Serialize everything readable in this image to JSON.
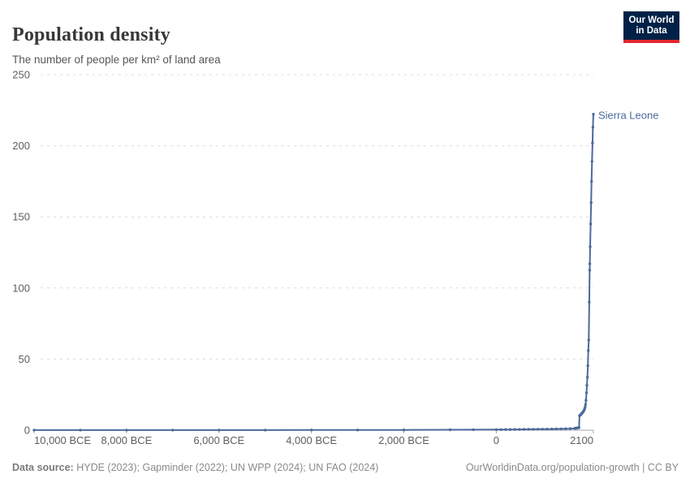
{
  "header": {
    "title": "Population density",
    "subtitle": "The number of people per km² of land area"
  },
  "logo": {
    "line1": "Our World",
    "line2": "in Data",
    "bg_color": "#002147",
    "accent_color": "#e2262d"
  },
  "chart_data": {
    "type": "line",
    "title": "Population density",
    "subtitle": "The number of people per km² of land area",
    "xlabel": "",
    "ylabel": "",
    "xlim": [
      -10000,
      2100
    ],
    "ylim": [
      0,
      250
    ],
    "yticks": [
      0,
      50,
      100,
      150,
      200,
      250
    ],
    "xticks": [
      {
        "year": -10000,
        "label": "10,000 BCE",
        "anchor": "start"
      },
      {
        "year": -8000,
        "label": "8,000 BCE",
        "anchor": "middle"
      },
      {
        "year": -6000,
        "label": "6,000 BCE",
        "anchor": "middle"
      },
      {
        "year": -4000,
        "label": "4,000 BCE",
        "anchor": "middle"
      },
      {
        "year": -2000,
        "label": "2,000 BCE",
        "anchor": "middle"
      },
      {
        "year": 0,
        "label": "0",
        "anchor": "middle"
      },
      {
        "year": 2100,
        "label": "2100",
        "anchor": "end"
      }
    ],
    "grid": "horizontal-dashed",
    "legend_position": "end-of-line-label",
    "series": [
      {
        "name": "Sierra Leone",
        "color": "#4c6a9c",
        "points": [
          [
            -10000,
            0.03
          ],
          [
            -9000,
            0.03
          ],
          [
            -8000,
            0.04
          ],
          [
            -7000,
            0.05
          ],
          [
            -6000,
            0.06
          ],
          [
            -5000,
            0.08
          ],
          [
            -4000,
            0.1
          ],
          [
            -3000,
            0.14
          ],
          [
            -2000,
            0.19
          ],
          [
            -1000,
            0.28
          ],
          [
            -500,
            0.33
          ],
          [
            0,
            0.4
          ],
          [
            100,
            0.42
          ],
          [
            200,
            0.45
          ],
          [
            300,
            0.47
          ],
          [
            400,
            0.5
          ],
          [
            500,
            0.53
          ],
          [
            600,
            0.56
          ],
          [
            700,
            0.6
          ],
          [
            800,
            0.63
          ],
          [
            900,
            0.67
          ],
          [
            1000,
            0.71
          ],
          [
            1100,
            0.76
          ],
          [
            1200,
            0.81
          ],
          [
            1300,
            0.86
          ],
          [
            1400,
            0.92
          ],
          [
            1500,
            1.0
          ],
          [
            1600,
            1.1
          ],
          [
            1700,
            1.3
          ],
          [
            1710,
            1.35
          ],
          [
            1720,
            1.4
          ],
          [
            1730,
            1.45
          ],
          [
            1740,
            1.5
          ],
          [
            1750,
            1.55
          ],
          [
            1760,
            1.62
          ],
          [
            1770,
            1.7
          ],
          [
            1780,
            1.78
          ],
          [
            1790,
            1.85
          ],
          [
            1800,
            10.2
          ],
          [
            1810,
            10.4
          ],
          [
            1820,
            10.7
          ],
          [
            1830,
            11.0
          ],
          [
            1840,
            11.4
          ],
          [
            1850,
            11.8
          ],
          [
            1860,
            12.2
          ],
          [
            1870,
            12.6
          ],
          [
            1880,
            13.0
          ],
          [
            1890,
            13.5
          ],
          [
            1900,
            14.1
          ],
          [
            1910,
            15.0
          ],
          [
            1920,
            16.2
          ],
          [
            1930,
            18.0
          ],
          [
            1940,
            21.0
          ],
          [
            1950,
            26.3
          ],
          [
            1960,
            31.5
          ],
          [
            1970,
            37.2
          ],
          [
            1980,
            45.3
          ],
          [
            1990,
            56.0
          ],
          [
            2000,
            63.4
          ],
          [
            2010,
            90.0
          ],
          [
            2020,
            112.5
          ],
          [
            2023,
            117.0
          ],
          [
            2030,
            129.0
          ],
          [
            2040,
            145.0
          ],
          [
            2050,
            160.0
          ],
          [
            2060,
            175.0
          ],
          [
            2070,
            189.0
          ],
          [
            2080,
            202.0
          ],
          [
            2090,
            213.0
          ],
          [
            2100,
            222.2
          ]
        ]
      }
    ],
    "colors": {
      "line": "#4c6a9c",
      "gridline": "#dcdcdc",
      "axis": "#a3a3a3",
      "tick_label": "#5e5e5e",
      "entity_label": "#4c6a9c"
    }
  },
  "footer": {
    "source_label": "Data source:",
    "source_text": " HYDE (2023); Gapminder (2022); UN WPP (2024); UN FAO (2024)",
    "link_text": "OurWorldinData.org/population-growth | CC BY"
  }
}
